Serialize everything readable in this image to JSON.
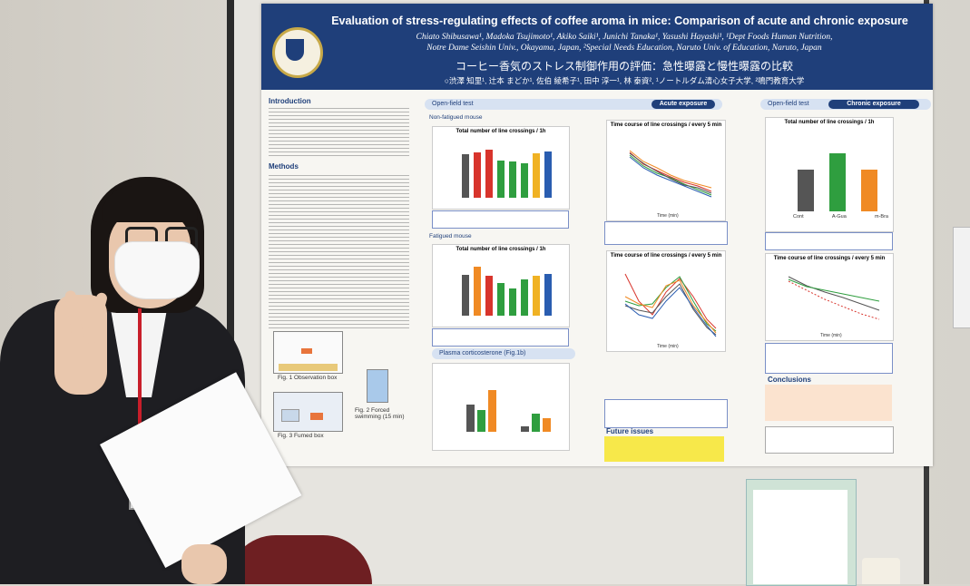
{
  "poster": {
    "title": "Evaluation of stress-regulating effects of coffee aroma in mice: Comparison of acute and chronic exposure",
    "authors_line1": "Chiato Shibusawa¹, Madoka Tsujimoto¹, Akiko Saiki¹, Junichi Tanaka¹, Yasushi Hayashi¹, ¹Dept Foods Human Nutrition,",
    "authors_line2": "Notre Dame Seishin Univ., Okayama, Japan, ²Special Needs Education, Naruto Univ. of Education, Naruto, Japan",
    "japanese_title": "コーヒー香気のストレス制御作用の評価：急性曝露と慢性曝露の比較",
    "japanese_authors": "○渋澤 知里¹, 辻本 まどか¹, 佐伯 綾希子¹, 田中 淳一¹, 林 泰資², ¹ノートルダム清心女子大学, ²鳴門教育大学",
    "sections": {
      "introduction": "Introduction",
      "methods": "Methods",
      "open_field_test": "Open-field test",
      "acute_exposure": "Acute exposure",
      "chronic_exposure": "Chronic exposure",
      "non_fatigued_mouse": "Non-fatigued mouse",
      "fatigued_mouse": "Fatigued mouse",
      "plasma_corticosterone": "Plasma corticosterone (Fig.1b)",
      "conclusions": "Conclusions",
      "future_issues": "Future issues"
    },
    "chart_titles": {
      "total_crossings": "Total number of line crossings / 1h",
      "time_course": "Time course of line crossings / every 5 min"
    },
    "chronic_labels": [
      "Cont",
      "A-Gua",
      "m-Bra"
    ],
    "axis_time": "Time (min)",
    "fig_captions": {
      "fig1": "Fig. 1 Observation box",
      "fig2": "Fig. 2 Forced swimming (15 min)",
      "fig3": "Fig. 3 Fumed box"
    },
    "colors": {
      "header": "#1f3f7a",
      "accent_gold": "#c7a948",
      "bar_green": "#2f9e3f",
      "bar_orange": "#f08a24",
      "bar_blue": "#2a5db0",
      "bar_red": "#d8342c",
      "bar_gray": "#555555"
    },
    "person_name_tag": "",
    "paper_note": ""
  }
}
